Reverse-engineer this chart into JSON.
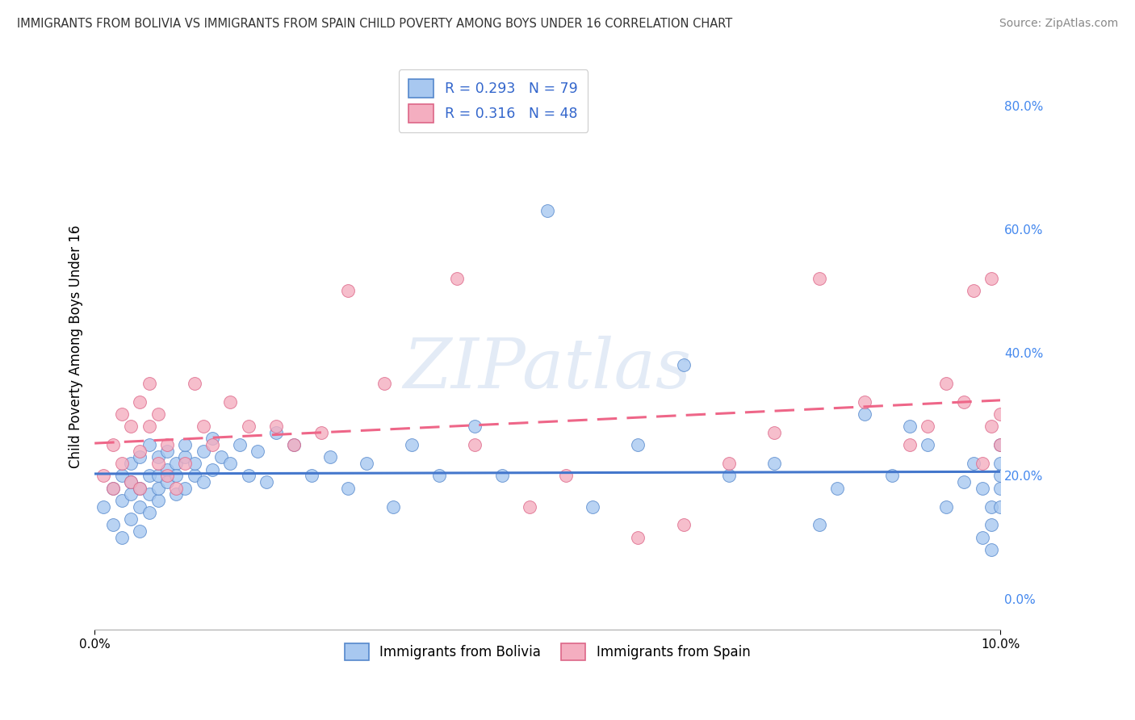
{
  "title": "IMMIGRANTS FROM BOLIVIA VS IMMIGRANTS FROM SPAIN CHILD POVERTY AMONG BOYS UNDER 16 CORRELATION CHART",
  "source": "Source: ZipAtlas.com",
  "ylabel": "Child Poverty Among Boys Under 16",
  "right_yticks": [
    0.0,
    0.2,
    0.4,
    0.6,
    0.8
  ],
  "right_yticklabels": [
    "0.0%",
    "20.0%",
    "40.0%",
    "60.0%",
    "80.0%"
  ],
  "xlim": [
    0.0,
    0.1
  ],
  "ylim": [
    -0.05,
    0.87
  ],
  "bolivia_color": "#a8c8f0",
  "bolivia_edge_color": "#5588cc",
  "spain_color": "#f4aec0",
  "spain_edge_color": "#dd6688",
  "bolivia_line_color": "#4477cc",
  "spain_line_color": "#ee6688",
  "R_bolivia": 0.293,
  "R_spain": 0.316,
  "N_bolivia": 79,
  "N_spain": 48,
  "legend_label_bolivia": "Immigrants from Bolivia",
  "legend_label_spain": "Immigrants from Spain",
  "bolivia_x": [
    0.001,
    0.002,
    0.002,
    0.003,
    0.003,
    0.003,
    0.004,
    0.004,
    0.004,
    0.004,
    0.005,
    0.005,
    0.005,
    0.005,
    0.006,
    0.006,
    0.006,
    0.006,
    0.007,
    0.007,
    0.007,
    0.007,
    0.008,
    0.008,
    0.008,
    0.009,
    0.009,
    0.009,
    0.01,
    0.01,
    0.01,
    0.011,
    0.011,
    0.012,
    0.012,
    0.013,
    0.013,
    0.014,
    0.015,
    0.016,
    0.017,
    0.018,
    0.019,
    0.02,
    0.022,
    0.024,
    0.026,
    0.028,
    0.03,
    0.033,
    0.035,
    0.038,
    0.042,
    0.045,
    0.05,
    0.055,
    0.06,
    0.065,
    0.07,
    0.075,
    0.08,
    0.082,
    0.085,
    0.088,
    0.09,
    0.092,
    0.094,
    0.096,
    0.097,
    0.098,
    0.098,
    0.099,
    0.099,
    0.099,
    0.1,
    0.1,
    0.1,
    0.1,
    0.1
  ],
  "bolivia_y": [
    0.15,
    0.18,
    0.12,
    0.2,
    0.16,
    0.1,
    0.22,
    0.17,
    0.13,
    0.19,
    0.18,
    0.15,
    0.23,
    0.11,
    0.2,
    0.17,
    0.25,
    0.14,
    0.2,
    0.16,
    0.23,
    0.18,
    0.21,
    0.19,
    0.24,
    0.17,
    0.22,
    0.2,
    0.23,
    0.18,
    0.25,
    0.2,
    0.22,
    0.24,
    0.19,
    0.26,
    0.21,
    0.23,
    0.22,
    0.25,
    0.2,
    0.24,
    0.19,
    0.27,
    0.25,
    0.2,
    0.23,
    0.18,
    0.22,
    0.15,
    0.25,
    0.2,
    0.28,
    0.2,
    0.63,
    0.15,
    0.25,
    0.38,
    0.2,
    0.22,
    0.12,
    0.18,
    0.3,
    0.2,
    0.28,
    0.25,
    0.15,
    0.19,
    0.22,
    0.18,
    0.1,
    0.15,
    0.12,
    0.08,
    0.2,
    0.15,
    0.18,
    0.22,
    0.25
  ],
  "spain_x": [
    0.001,
    0.002,
    0.002,
    0.003,
    0.003,
    0.004,
    0.004,
    0.005,
    0.005,
    0.005,
    0.006,
    0.006,
    0.007,
    0.007,
    0.008,
    0.008,
    0.009,
    0.01,
    0.011,
    0.012,
    0.013,
    0.015,
    0.017,
    0.02,
    0.022,
    0.025,
    0.028,
    0.032,
    0.04,
    0.042,
    0.048,
    0.052,
    0.06,
    0.065,
    0.07,
    0.075,
    0.08,
    0.085,
    0.09,
    0.092,
    0.094,
    0.096,
    0.097,
    0.098,
    0.099,
    0.099,
    0.1,
    0.1
  ],
  "spain_y": [
    0.2,
    0.25,
    0.18,
    0.22,
    0.3,
    0.19,
    0.28,
    0.32,
    0.24,
    0.18,
    0.28,
    0.35,
    0.22,
    0.3,
    0.25,
    0.2,
    0.18,
    0.22,
    0.35,
    0.28,
    0.25,
    0.32,
    0.28,
    0.28,
    0.25,
    0.27,
    0.5,
    0.35,
    0.52,
    0.25,
    0.15,
    0.2,
    0.1,
    0.12,
    0.22,
    0.27,
    0.52,
    0.32,
    0.25,
    0.28,
    0.35,
    0.32,
    0.5,
    0.22,
    0.52,
    0.28,
    0.3,
    0.25
  ]
}
